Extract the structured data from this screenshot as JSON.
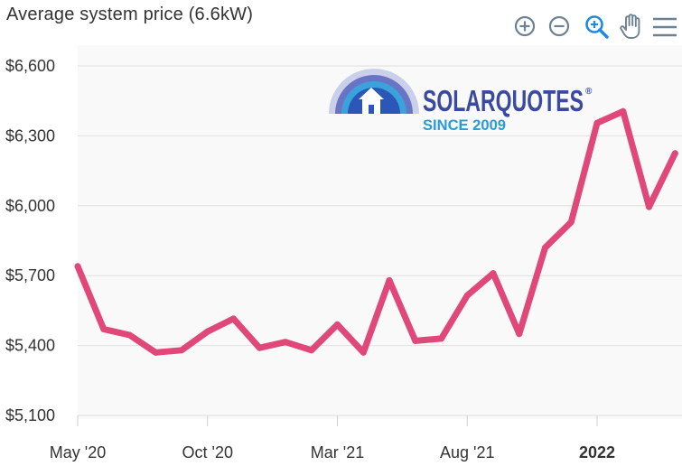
{
  "toolbar": {
    "zoom_in_icon": "plus-circle-icon",
    "zoom_out_icon": "minus-circle-icon",
    "selection_zoom_icon": "magnifier-plus-icon",
    "pan_icon": "hand-icon",
    "menu_icon": "hamburger-menu-icon",
    "active_color": "#1e88e5",
    "idle_color": "#6e8192"
  },
  "watermark": {
    "brand": "SOLARQUOTES",
    "registered": "®",
    "tagline": "SINCE 2009",
    "brand_color": "#3a4a9e",
    "tagline_color": "#2a9bd8"
  },
  "chart_data": {
    "type": "line",
    "title": "Average system price (6.6kW)",
    "xlabel": "",
    "ylabel": "",
    "series_color": "#e0487a",
    "grid": true,
    "ylim": [
      5100,
      6600
    ],
    "yticks": [
      5100,
      5400,
      5700,
      6000,
      6300,
      6600
    ],
    "ytick_labels": [
      "$5,100",
      "$5,400",
      "$5,700",
      "$6,000",
      "$6,300",
      "$6,600"
    ],
    "xticks": [
      {
        "label": "May '20",
        "month_index": 0,
        "bold": false
      },
      {
        "label": "Oct '20",
        "month_index": 5,
        "bold": false
      },
      {
        "label": "Mar '21",
        "month_index": 10,
        "bold": false
      },
      {
        "label": "Aug '21",
        "month_index": 15,
        "bold": false
      },
      {
        "label": "2022",
        "month_index": 20,
        "bold": true
      }
    ],
    "x": [
      "2020-05",
      "2020-06",
      "2020-07",
      "2020-08",
      "2020-09",
      "2020-10",
      "2020-11",
      "2020-12",
      "2021-01",
      "2021-02",
      "2021-03",
      "2021-04",
      "2021-05",
      "2021-06",
      "2021-07",
      "2021-08",
      "2021-09",
      "2021-10",
      "2021-11",
      "2021-12",
      "2022-01",
      "2022-02",
      "2022-03",
      "2022-04"
    ],
    "series": [
      {
        "values": [
          5740,
          5470,
          5445,
          5370,
          5380,
          5460,
          5515,
          5390,
          5415,
          5380,
          5490,
          5370,
          5680,
          5420,
          5430,
          5615,
          5710,
          5450,
          5820,
          5930,
          6355,
          6405,
          5995,
          6225
        ]
      }
    ]
  }
}
